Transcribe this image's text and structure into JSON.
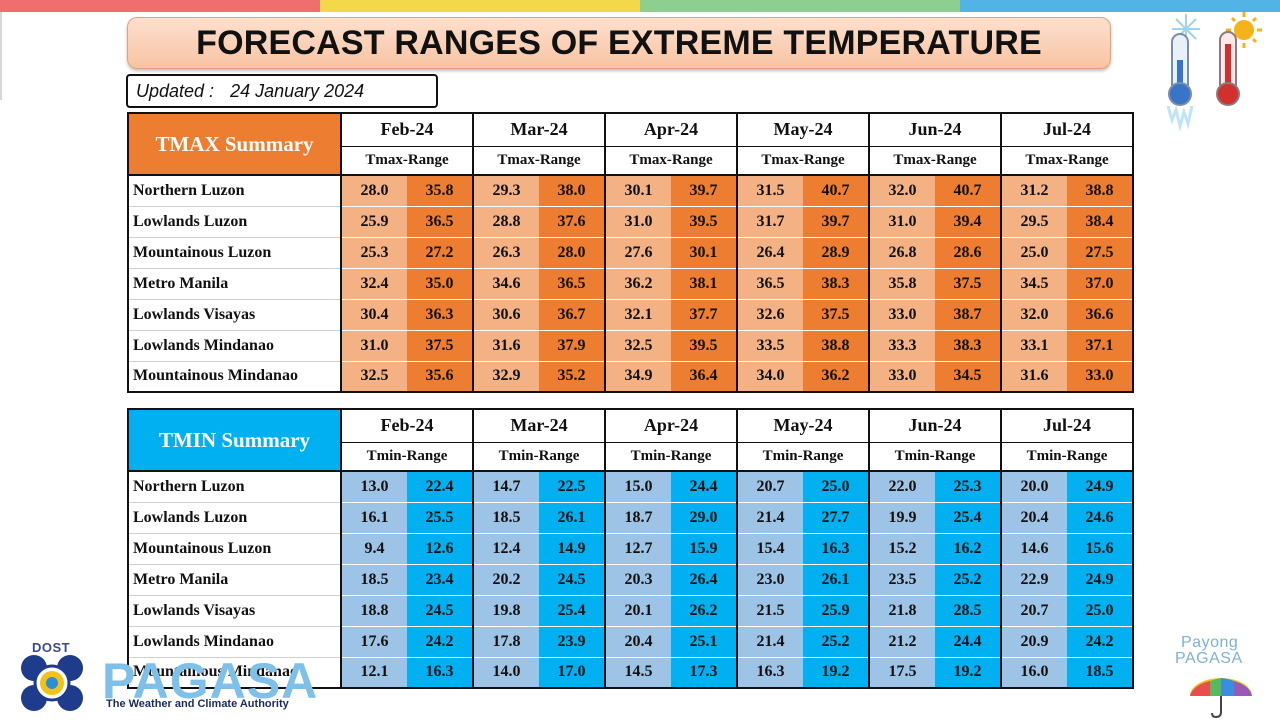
{
  "page": {
    "title": "FORECAST RANGES OF EXTREME TEMPERATURE",
    "updated_label": "Updated :",
    "updated_date": "24 January 2024"
  },
  "colors": {
    "tmax_high": "#ed7d31",
    "tmax_low": "#f4b183",
    "tmin_high": "#00b0f0",
    "tmin_low": "#9dc3e6",
    "top_stripe": [
      "#ef6f6f",
      "#f4d84a",
      "#8ccf8f",
      "#52b4e6"
    ]
  },
  "tmax": {
    "title": "TMAX Summary",
    "range_label": "Tmax-Range",
    "months": [
      "Feb-24",
      "Mar-24",
      "Apr-24",
      "May-24",
      "Jun-24",
      "Jul-24"
    ],
    "rows": [
      {
        "region": "Northern Luzon",
        "values": [
          "28.0",
          "35.8",
          "29.3",
          "38.0",
          "30.1",
          "39.7",
          "31.5",
          "40.7",
          "32.0",
          "40.7",
          "31.2",
          "38.8"
        ]
      },
      {
        "region": "Lowlands Luzon",
        "values": [
          "25.9",
          "36.5",
          "28.8",
          "37.6",
          "31.0",
          "39.5",
          "31.7",
          "39.7",
          "31.0",
          "39.4",
          "29.5",
          "38.4"
        ]
      },
      {
        "region": "Mountainous Luzon",
        "values": [
          "25.3",
          "27.2",
          "26.3",
          "28.0",
          "27.6",
          "30.1",
          "26.4",
          "28.9",
          "26.8",
          "28.6",
          "25.0",
          "27.5"
        ]
      },
      {
        "region": "Metro Manila",
        "values": [
          "32.4",
          "35.0",
          "34.6",
          "36.5",
          "36.2",
          "38.1",
          "36.5",
          "38.3",
          "35.8",
          "37.5",
          "34.5",
          "37.0"
        ]
      },
      {
        "region": "Lowlands Visayas",
        "values": [
          "30.4",
          "36.3",
          "30.6",
          "36.7",
          "32.1",
          "37.7",
          "32.6",
          "37.5",
          "33.0",
          "38.7",
          "32.0",
          "36.6"
        ]
      },
      {
        "region": "Lowlands Mindanao",
        "values": [
          "31.0",
          "37.5",
          "31.6",
          "37.9",
          "32.5",
          "39.5",
          "33.5",
          "38.8",
          "33.3",
          "38.3",
          "33.1",
          "37.1"
        ]
      },
      {
        "region": "Mountainous Mindanao",
        "values": [
          "32.5",
          "35.6",
          "32.9",
          "35.2",
          "34.9",
          "36.4",
          "34.0",
          "36.2",
          "33.0",
          "34.5",
          "31.6",
          "33.0"
        ]
      }
    ]
  },
  "tmin": {
    "title": "TMIN Summary",
    "range_label": "Tmin-Range",
    "months": [
      "Feb-24",
      "Mar-24",
      "Apr-24",
      "May-24",
      "Jun-24",
      "Jul-24"
    ],
    "rows": [
      {
        "region": "Northern Luzon",
        "values": [
          "13.0",
          "22.4",
          "14.7",
          "22.5",
          "15.0",
          "24.4",
          "20.7",
          "25.0",
          "22.0",
          "25.3",
          "20.0",
          "24.9"
        ]
      },
      {
        "region": "Lowlands Luzon",
        "values": [
          "16.1",
          "25.5",
          "18.5",
          "26.1",
          "18.7",
          "29.0",
          "21.4",
          "27.7",
          "19.9",
          "25.4",
          "20.4",
          "24.6"
        ]
      },
      {
        "region": "Mountainous Luzon",
        "values": [
          "9.4",
          "12.6",
          "12.4",
          "14.9",
          "12.7",
          "15.9",
          "15.4",
          "16.3",
          "15.2",
          "16.2",
          "14.6",
          "15.6"
        ]
      },
      {
        "region": "Metro Manila",
        "values": [
          "18.5",
          "23.4",
          "20.2",
          "24.5",
          "20.3",
          "26.4",
          "23.0",
          "26.1",
          "23.5",
          "25.2",
          "22.9",
          "24.9"
        ]
      },
      {
        "region": "Lowlands Visayas",
        "values": [
          "18.8",
          "24.5",
          "19.8",
          "25.4",
          "20.1",
          "26.2",
          "21.5",
          "25.9",
          "21.8",
          "28.5",
          "20.7",
          "25.0"
        ]
      },
      {
        "region": "Lowlands Mindanao",
        "values": [
          "17.6",
          "24.2",
          "17.8",
          "23.9",
          "20.4",
          "25.1",
          "21.4",
          "25.2",
          "21.2",
          "24.4",
          "20.9",
          "24.2"
        ]
      },
      {
        "region": "Mountainous Mindanao",
        "values": [
          "12.1",
          "16.3",
          "14.0",
          "17.0",
          "14.5",
          "17.3",
          "16.3",
          "19.2",
          "17.5",
          "19.2",
          "16.0",
          "18.5"
        ]
      }
    ]
  },
  "logos": {
    "dost": "DOST",
    "pagasa_word": "PAGASA",
    "pagasa_tagline": "The Weather and Climate Authority",
    "payong_line1": "Payong",
    "payong_line2": "PAGASA"
  },
  "icons": {
    "thermometers": "thermometer-cold-hot-icon",
    "umbrella": "umbrella-icon"
  }
}
